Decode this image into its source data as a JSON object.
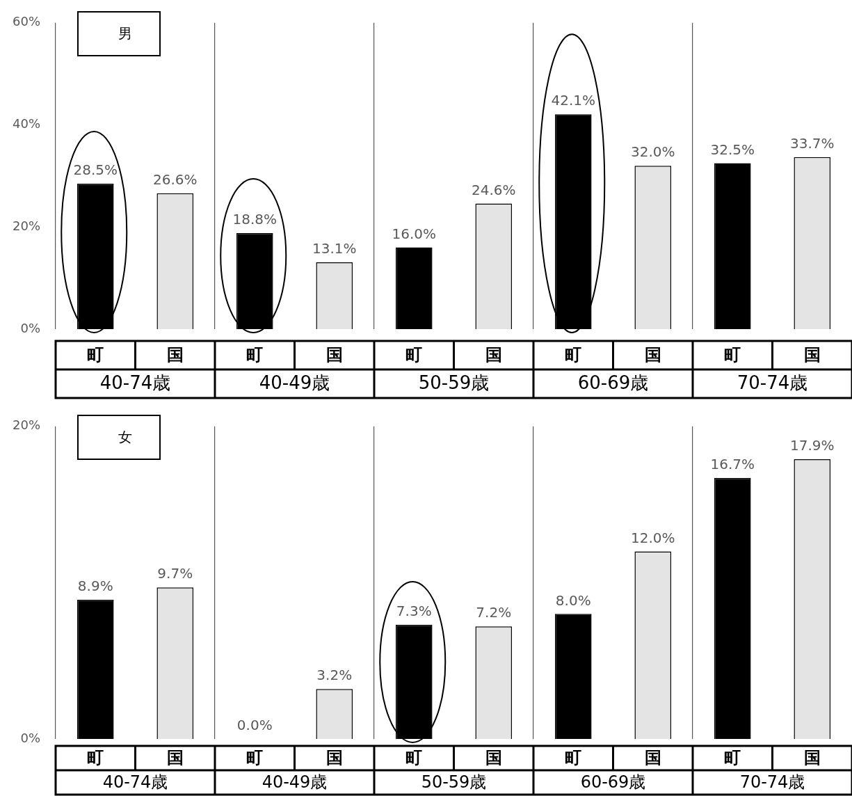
{
  "chart_data": [
    {
      "type": "bar",
      "categories": [
        "町",
        "国",
        "町",
        "国",
        "町",
        "国",
        "町",
        "国",
        "町",
        "国"
      ],
      "values": [
        28.5,
        26.6,
        18.8,
        13.1,
        16.0,
        24.6,
        42.1,
        32.0,
        32.5,
        33.7
      ],
      "colors": [
        "#000000",
        "#e4e4e4",
        "#000000",
        "#e4e4e4",
        "#000000",
        "#e4e4e4",
        "#000000",
        "#e4e4e4",
        "#000000",
        "#e4e4e4"
      ],
      "value_labels": [
        "28.5%",
        "26.6%",
        "18.8%",
        "13.1%",
        "16.0%",
        "24.6%",
        "42.1%",
        "32.0%",
        "32.5%",
        "33.7%"
      ],
      "ylim": [
        0,
        60
      ],
      "yticks": [
        {
          "value": 0,
          "label": "0%"
        },
        {
          "value": 20,
          "label": "20%"
        },
        {
          "value": 40,
          "label": "40%"
        },
        {
          "value": 60,
          "label": "60%"
        }
      ],
      "grid": "x",
      "annotations": [
        "男",
        "40-74歳",
        "40-49歳",
        "50-59歳",
        "60-69歳",
        "70-74歳"
      ]
    },
    {
      "type": "bar",
      "categories": [
        "町",
        "国",
        "町",
        "国",
        "町",
        "国",
        "町",
        "国",
        "町",
        "国"
      ],
      "values": [
        8.9,
        9.7,
        0.0,
        3.2,
        7.3,
        7.2,
        8.0,
        12.0,
        16.7,
        17.9
      ],
      "colors": [
        "#000000",
        "#e4e4e4",
        "#000000",
        "#e4e4e4",
        "#000000",
        "#e4e4e4",
        "#000000",
        "#e4e4e4",
        "#000000",
        "#e4e4e4"
      ],
      "value_labels": [
        "8.9%",
        "9.7%",
        "0.0%",
        "3.2%",
        "7.3%",
        "7.2%",
        "8.0%",
        "12.0%",
        "16.7%",
        "17.9%"
      ],
      "ylim": [
        0,
        20
      ],
      "yticks": [
        {
          "value": 0,
          "label": "0%"
        },
        {
          "value": 20,
          "label": "20%"
        }
      ],
      "grid": "x",
      "annotations": [
        "女",
        "40-74歳",
        "40-49歳",
        "50-59歳",
        "60-69歳",
        "70-74歳"
      ]
    }
  ]
}
